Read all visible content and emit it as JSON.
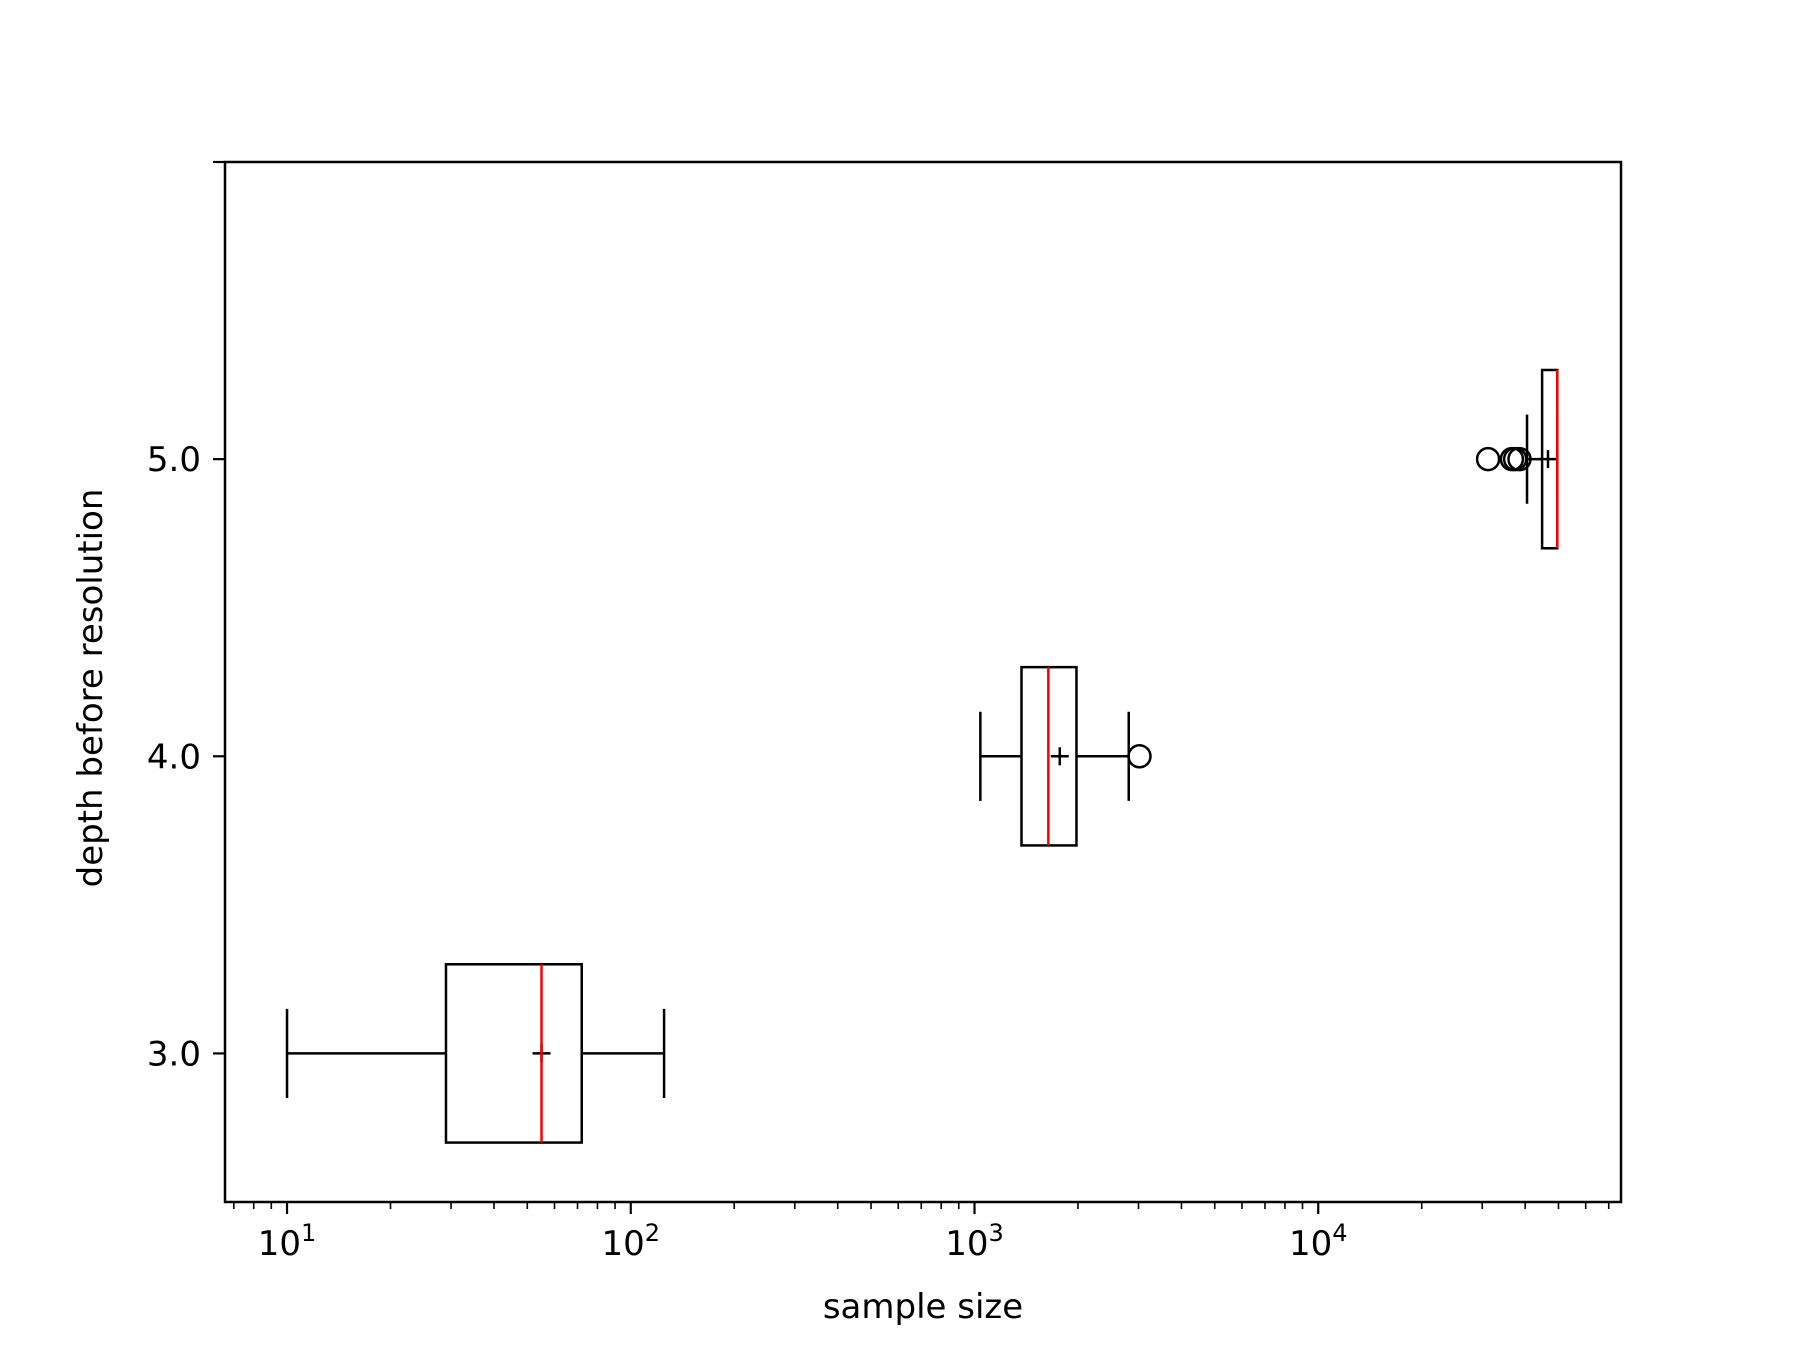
{
  "chart_data": {
    "type": "boxplot",
    "orientation": "horizontal",
    "title": "",
    "xlabel": "sample size",
    "ylabel": "depth before resolution",
    "xscale": "log",
    "xlim": [
      6.6,
      76000
    ],
    "ylim": [
      2.5,
      6.0
    ],
    "grid": false,
    "legend": null,
    "x_ticks": [
      {
        "value": 10,
        "base": "10",
        "exp": "1"
      },
      {
        "value": 100,
        "base": "10",
        "exp": "2"
      },
      {
        "value": 1000,
        "base": "10",
        "exp": "3"
      },
      {
        "value": 10000,
        "base": "10",
        "exp": "4"
      }
    ],
    "y_ticks": [
      {
        "value": 3.0,
        "label": "3.0"
      },
      {
        "value": 4.0,
        "label": "4.0"
      },
      {
        "value": 5.0,
        "label": "5.0"
      },
      {
        "value": 6.0,
        "label": ""
      }
    ],
    "series": [
      {
        "name": "3.0",
        "position": 3.0,
        "whisker_low": 10,
        "q1": 29,
        "median": 55,
        "mean": 55,
        "q3": 72,
        "whisker_high": 125,
        "outliers": []
      },
      {
        "name": "4.0",
        "position": 4.0,
        "whisker_low": 1040,
        "q1": 1370,
        "median": 1640,
        "mean": 1770,
        "q3": 1980,
        "whisker_high": 2810,
        "outliers": [
          3020
        ]
      },
      {
        "name": "5.0",
        "position": 5.0,
        "whisker_low": 40500,
        "q1": 44800,
        "median": 49600,
        "mean": 46600,
        "q3": 49600,
        "whisker_high": 49600,
        "outliers": [
          31200,
          36600,
          37400,
          38500
        ]
      }
    ],
    "colors": {
      "box": "#000000",
      "median": "#ff0000",
      "mean_marker": "#000000",
      "outlier": "#000000"
    }
  }
}
